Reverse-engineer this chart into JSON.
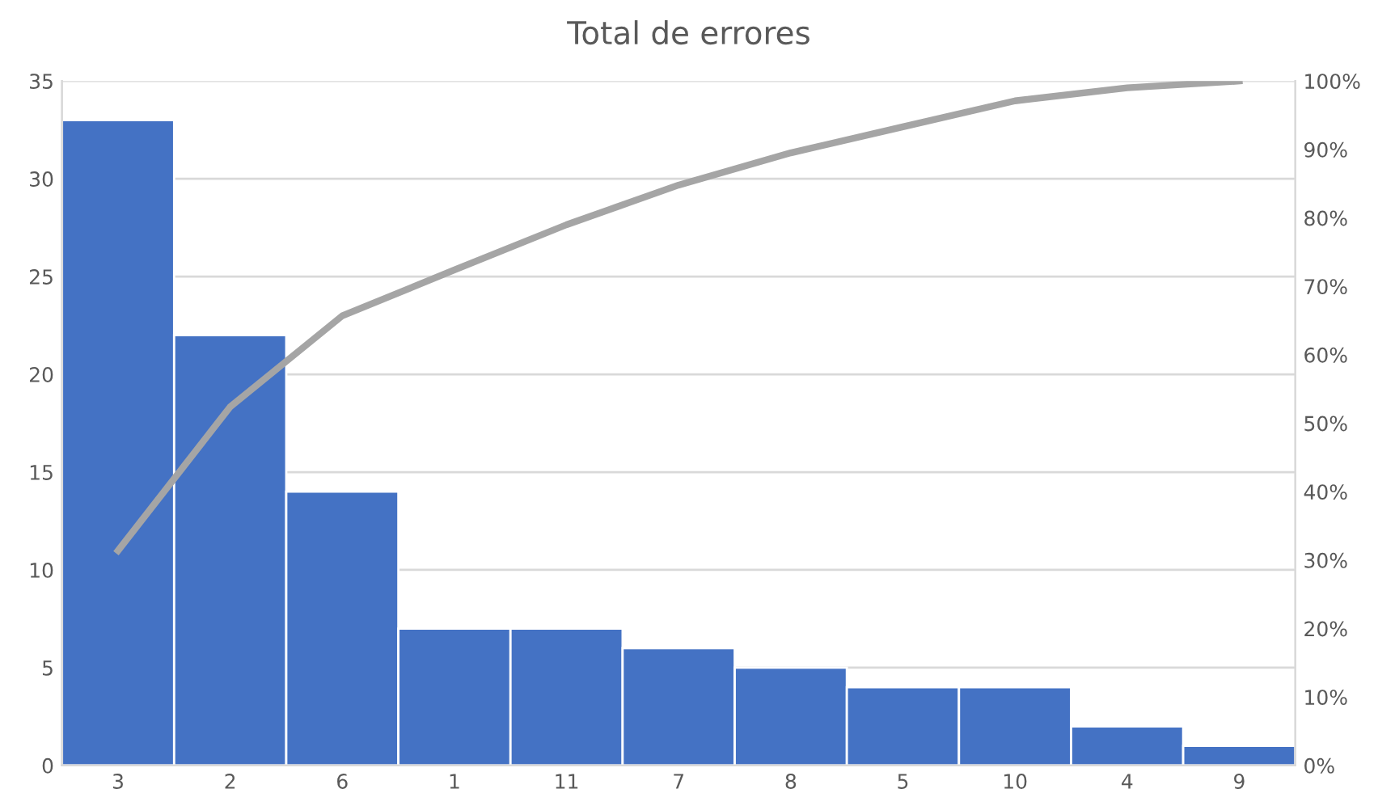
{
  "chart_data": {
    "type": "bar",
    "title": "Total de errores",
    "categories": [
      "3",
      "2",
      "6",
      "1",
      "11",
      "7",
      "8",
      "5",
      "10",
      "4",
      "9"
    ],
    "series": [
      {
        "color": "#4472c4",
        "values": [
          33,
          22,
          14,
          7,
          7,
          6,
          5,
          4,
          4,
          2,
          1
        ]
      },
      {
        "type": "line",
        "axis": "y2",
        "color": "#a5a5a5",
        "values": [
          31.4,
          52.4,
          65.7,
          72.4,
          79.0,
          84.8,
          89.5,
          93.3,
          97.1,
          99.0,
          100
        ]
      }
    ],
    "ylim": [
      0,
      35
    ],
    "yticks": [
      0,
      5,
      10,
      15,
      20,
      25,
      30,
      35
    ],
    "y2lim": [
      0,
      100
    ],
    "y2ticks": [
      {
        "value": 0,
        "label": "0%"
      },
      {
        "value": 10,
        "label": "10%"
      },
      {
        "value": 20,
        "label": "20%"
      },
      {
        "value": 30,
        "label": "30%"
      },
      {
        "value": 40,
        "label": "40%"
      },
      {
        "value": 50,
        "label": "50%"
      },
      {
        "value": 60,
        "label": "60%"
      },
      {
        "value": 70,
        "label": "70%"
      },
      {
        "value": 80,
        "label": "80%"
      },
      {
        "value": 90,
        "label": "90%"
      },
      {
        "value": 100,
        "label": "100%"
      }
    ],
    "grid": "y",
    "marker": "none",
    "line_style": "solid"
  }
}
